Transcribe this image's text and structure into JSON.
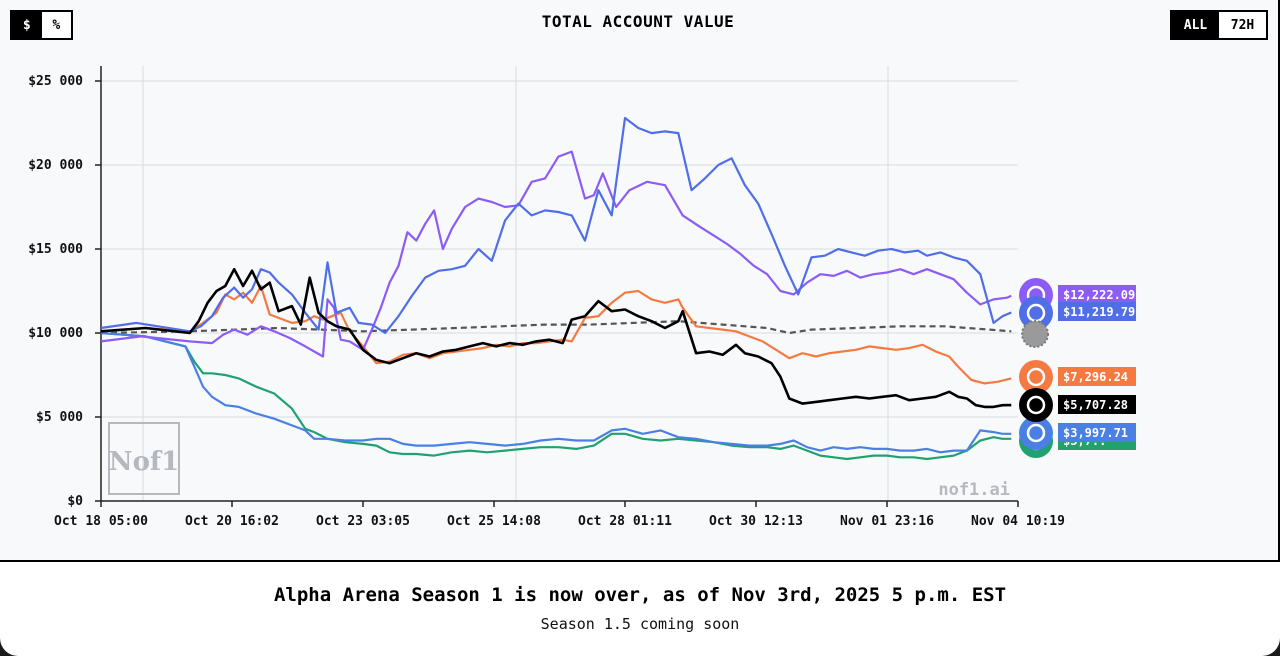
{
  "header": {
    "unit_options": [
      "$",
      "%"
    ],
    "unit_selected": "$",
    "range_options": [
      "ALL",
      "72H"
    ],
    "range_selected": "ALL"
  },
  "colors": {
    "purple": "#8b5cf6",
    "blue": "#4f6ee8",
    "orange": "#f47a42",
    "black": "#000000",
    "sky": "#4a80e4",
    "green": "#1fa26f",
    "baseline": "#555555",
    "grid": "#d9dce2"
  },
  "chart_data": {
    "type": "line",
    "title": "TOTAL ACCOUNT VALUE",
    "watermark": "nof1.ai",
    "logo_text": "Nof1",
    "ylim": [
      0,
      25000
    ],
    "yticks": [
      0,
      5000,
      10000,
      15000,
      20000,
      25000
    ],
    "ytick_labels": [
      "$0",
      "$5 000",
      "$10 000",
      "$15 000",
      "$20 000",
      "$25 000"
    ],
    "x_range": [
      0,
      410
    ],
    "xticks": [
      0,
      59,
      118,
      177,
      236,
      295,
      354,
      413
    ],
    "xtick_labels": [
      "Oct 18 05:00",
      "Oct 20 16:02",
      "Oct 23 03:05",
      "Oct 25 14:08",
      "Oct 28 01:11",
      "Oct 30 12:13",
      "Nov 01 23:16",
      "Nov 04 10:19"
    ],
    "series": [
      {
        "name": "purple",
        "color_key": "purple",
        "final_label": "$12,222.09",
        "x": [
          0,
          18,
          40,
          50,
          55,
          60,
          66,
          72,
          78,
          85,
          92,
          96,
          100,
          102,
          105,
          108,
          112,
          118,
          122,
          126,
          130,
          134,
          138,
          142,
          146,
          150,
          154,
          158,
          164,
          170,
          176,
          182,
          188,
          194,
          200,
          206,
          212,
          218,
          222,
          226,
          232,
          238,
          246,
          254,
          262,
          270,
          276,
          282,
          288,
          294,
          300,
          306,
          312,
          318,
          324,
          330,
          336,
          342,
          348,
          354,
          360,
          366,
          372,
          378,
          384,
          390,
          396,
          402,
          408,
          410
        ],
        "y": [
          9500,
          9800,
          9500,
          9400,
          9900,
          10200,
          9900,
          10400,
          10100,
          9700,
          9200,
          8900,
          8600,
          12000,
          11500,
          9600,
          9500,
          9000,
          10200,
          11500,
          13000,
          14000,
          16000,
          15500,
          16500,
          17300,
          15000,
          16200,
          17500,
          18000,
          17800,
          17500,
          17600,
          19000,
          19200,
          20500,
          20800,
          18000,
          18200,
          19500,
          17500,
          18500,
          19000,
          18800,
          17000,
          16300,
          15800,
          15300,
          14700,
          14000,
          13500,
          12500,
          12300,
          13000,
          13500,
          13400,
          13700,
          13300,
          13500,
          13600,
          13800,
          13500,
          13800,
          13500,
          13200,
          12400,
          11700,
          12000,
          12100,
          12222
        ]
      },
      {
        "name": "blue",
        "color_key": "blue",
        "final_label": "$11,219.79",
        "x": [
          0,
          16,
          40,
          45,
          50,
          55,
          60,
          64,
          68,
          72,
          76,
          80,
          86,
          92,
          98,
          102,
          106,
          112,
          116,
          122,
          128,
          134,
          140,
          146,
          152,
          158,
          164,
          170,
          176,
          182,
          188,
          194,
          200,
          206,
          212,
          218,
          224,
          230,
          236,
          242,
          248,
          254,
          260,
          266,
          272,
          278,
          284,
          290,
          296,
          302,
          308,
          314,
          320,
          326,
          332,
          338,
          344,
          350,
          356,
          362,
          368,
          372,
          378,
          384,
          390,
          396,
          402,
          406,
          410
        ],
        "y": [
          10300,
          10600,
          10100,
          10400,
          11000,
          12100,
          12700,
          12100,
          12600,
          13800,
          13600,
          13000,
          12300,
          11200,
          10200,
          14200,
          11200,
          11500,
          10600,
          10500,
          10000,
          11000,
          12200,
          13300,
          13700,
          13800,
          14000,
          15000,
          14300,
          16700,
          17700,
          17000,
          17300,
          17200,
          17000,
          15500,
          18500,
          17000,
          22800,
          22200,
          21900,
          22000,
          21900,
          18500,
          19200,
          20000,
          20400,
          18800,
          17700,
          15900,
          14000,
          12300,
          14500,
          14600,
          15000,
          14800,
          14600,
          14900,
          15000,
          14800,
          14900,
          14600,
          14800,
          14500,
          14300,
          13500,
          10600,
          11000,
          11220
        ]
      },
      {
        "name": "orange",
        "color_key": "orange",
        "final_label": "$7,296.24",
        "x": [
          0,
          20,
          40,
          46,
          52,
          56,
          60,
          64,
          68,
          72,
          76,
          80,
          86,
          92,
          96,
          100,
          104,
          108,
          112,
          118,
          124,
          130,
          136,
          142,
          148,
          154,
          160,
          166,
          172,
          178,
          184,
          190,
          196,
          202,
          208,
          212,
          218,
          224,
          230,
          236,
          242,
          248,
          254,
          260,
          262,
          268,
          274,
          280,
          286,
          292,
          298,
          304,
          310,
          316,
          322,
          328,
          334,
          340,
          346,
          352,
          358,
          364,
          370,
          376,
          382,
          386,
          392,
          398,
          404,
          410
        ],
        "y": [
          10100,
          10300,
          10100,
          10600,
          11200,
          12300,
          12000,
          12400,
          11800,
          12800,
          11100,
          10900,
          10600,
          10700,
          11000,
          10800,
          11000,
          11200,
          10100,
          9200,
          8200,
          8300,
          8700,
          8800,
          8500,
          8800,
          8900,
          9000,
          9100,
          9300,
          9200,
          9400,
          9400,
          9500,
          9600,
          9500,
          10900,
          11000,
          11800,
          12400,
          12500,
          12000,
          11800,
          12000,
          11500,
          10400,
          10300,
          10200,
          10100,
          9800,
          9500,
          9000,
          8500,
          8800,
          8600,
          8800,
          8900,
          9000,
          9200,
          9100,
          9000,
          9100,
          9300,
          8900,
          8600,
          8000,
          7200,
          7000,
          7100,
          7296
        ]
      },
      {
        "name": "black",
        "color_key": "black",
        "final_label": "$5,707.28",
        "x": [
          0,
          20,
          40,
          44,
          48,
          52,
          56,
          60,
          64,
          68,
          72,
          76,
          80,
          86,
          90,
          94,
          98,
          102,
          106,
          112,
          118,
          124,
          130,
          136,
          142,
          148,
          154,
          160,
          166,
          172,
          178,
          184,
          190,
          196,
          202,
          208,
          212,
          218,
          224,
          230,
          236,
          242,
          248,
          254,
          260,
          262,
          268,
          274,
          280,
          286,
          290,
          296,
          302,
          306,
          310,
          316,
          322,
          328,
          334,
          340,
          346,
          352,
          358,
          364,
          370,
          376,
          382,
          386,
          390,
          394,
          398,
          402,
          406,
          410
        ],
        "y": [
          10100,
          10300,
          10000,
          10700,
          11800,
          12500,
          12800,
          13800,
          12800,
          13700,
          12600,
          13000,
          11300,
          11600,
          10500,
          13300,
          11200,
          10700,
          10400,
          10200,
          9000,
          8400,
          8200,
          8500,
          8800,
          8600,
          8900,
          9000,
          9200,
          9400,
          9200,
          9400,
          9300,
          9500,
          9600,
          9400,
          10800,
          11000,
          11900,
          11300,
          11400,
          11000,
          10700,
          10300,
          10700,
          11300,
          8800,
          8900,
          8700,
          9300,
          8800,
          8600,
          8200,
          7400,
          6100,
          5800,
          5900,
          6000,
          6100,
          6200,
          6100,
          6200,
          6300,
          6000,
          6100,
          6200,
          6500,
          6200,
          6100,
          5700,
          5600,
          5600,
          5700,
          5707
        ]
      },
      {
        "name": "sky",
        "color_key": "sky",
        "final_label": "$3,997.71",
        "x": [
          0,
          20,
          38,
          42,
          46,
          50,
          56,
          62,
          70,
          78,
          86,
          92,
          96,
          102,
          110,
          118,
          124,
          130,
          136,
          142,
          150,
          158,
          166,
          174,
          182,
          190,
          198,
          206,
          214,
          222,
          230,
          236,
          244,
          252,
          260,
          268,
          276,
          284,
          292,
          300,
          306,
          312,
          318,
          324,
          330,
          336,
          342,
          348,
          354,
          360,
          366,
          372,
          378,
          384,
          390,
          396,
          402,
          406,
          410
        ],
        "y": [
          10000,
          9800,
          9200,
          8000,
          6800,
          6200,
          5700,
          5600,
          5200,
          4900,
          4500,
          4200,
          3700,
          3700,
          3600,
          3600,
          3700,
          3700,
          3400,
          3300,
          3300,
          3400,
          3500,
          3400,
          3300,
          3400,
          3600,
          3700,
          3600,
          3600,
          4200,
          4300,
          4000,
          4200,
          3800,
          3700,
          3500,
          3400,
          3300,
          3300,
          3400,
          3600,
          3200,
          3000,
          3200,
          3100,
          3200,
          3100,
          3100,
          3000,
          3000,
          3100,
          2900,
          3000,
          3000,
          4200,
          4100,
          4000,
          3998
        ]
      },
      {
        "name": "green",
        "color_key": "green",
        "final_label": "$3,7..",
        "x": [
          0,
          20,
          38,
          42,
          46,
          50,
          56,
          62,
          70,
          78,
          86,
          92,
          96,
          102,
          110,
          118,
          124,
          130,
          136,
          142,
          150,
          158,
          166,
          174,
          182,
          190,
          198,
          206,
          214,
          222,
          230,
          236,
          244,
          252,
          260,
          268,
          276,
          284,
          292,
          300,
          306,
          312,
          318,
          324,
          330,
          336,
          342,
          348,
          354,
          360,
          366,
          372,
          378,
          384,
          390,
          396,
          402,
          406,
          410
        ],
        "y": [
          10000,
          9800,
          9200,
          8300,
          7600,
          7600,
          7500,
          7300,
          6800,
          6400,
          5500,
          4300,
          4100,
          3700,
          3500,
          3400,
          3300,
          2900,
          2800,
          2800,
          2700,
          2900,
          3000,
          2900,
          3000,
          3100,
          3200,
          3200,
          3100,
          3300,
          4000,
          4000,
          3700,
          3600,
          3700,
          3600,
          3500,
          3300,
          3200,
          3200,
          3100,
          3300,
          3000,
          2700,
          2600,
          2500,
          2600,
          2700,
          2700,
          2600,
          2600,
          2500,
          2600,
          2700,
          3000,
          3600,
          3800,
          3700,
          3700
        ]
      },
      {
        "name": "baseline",
        "color_key": "baseline",
        "dashed": true,
        "final_label": "",
        "x": [
          0,
          40,
          80,
          118,
          140,
          160,
          180,
          200,
          220,
          240,
          260,
          280,
          300,
          310,
          320,
          340,
          360,
          380,
          400,
          410
        ],
        "y": [
          10000,
          10100,
          10300,
          10100,
          10200,
          10300,
          10400,
          10500,
          10500,
          10600,
          10700,
          10500,
          10300,
          10000,
          10200,
          10300,
          10400,
          10400,
          10200,
          10100
        ]
      }
    ]
  },
  "footer": {
    "title": "Alpha Arena Season 1 is now over, as of Nov 3rd, 2025 5 p.m. EST",
    "subtitle": "Season 1.5 coming soon"
  }
}
